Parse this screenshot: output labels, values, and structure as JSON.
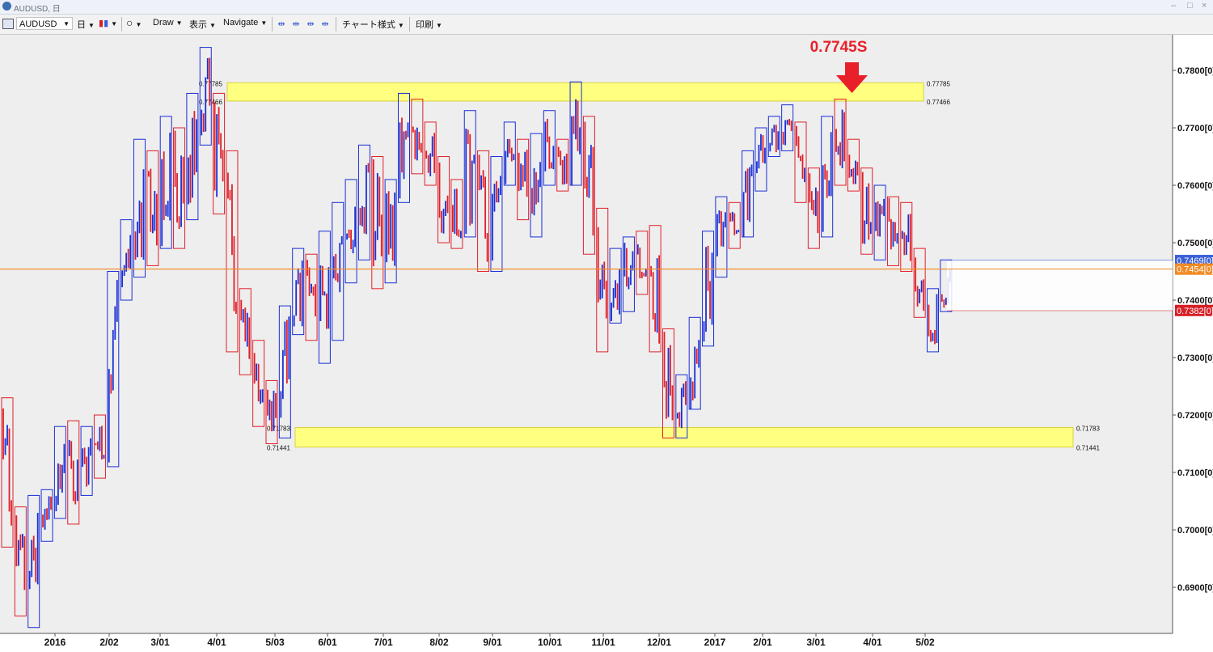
{
  "window": {
    "title": "AUDUSD, 日"
  },
  "toolbar": {
    "symbol": "AUDUSD",
    "timeframe": "日",
    "candle_icon": "candlestick-icon",
    "circle_icon": "circle-icon",
    "draw": "Draw",
    "view": "表示",
    "navigate": "Navigate",
    "chart_style": "チャート様式",
    "print": "印刷"
  },
  "chart": {
    "annotation_text": "0.7745S",
    "annotation_color": "#e8202a",
    "zone_color": "#ffff80",
    "bull_color": "#1a2fd6",
    "bear_color": "#e0202a",
    "resistance_zone": {
      "upper": 0.77785,
      "lower": 0.77466,
      "upper_label": "0.77785",
      "lower_label": "0.77466"
    },
    "support_zone": {
      "upper": 0.71783,
      "lower": 0.71441,
      "upper_label": "0.71783",
      "lower_label": "0.71441"
    },
    "price_axis": [
      "0.7800[0]",
      "0.7700[0]",
      "0.7600[0]",
      "0.7500[0]",
      "0.7400[0]",
      "0.7300[0]",
      "0.7200[0]",
      "0.7100[0]",
      "0.7000[0]",
      "0.6900[0]"
    ],
    "price_tags": [
      {
        "label": "0.7469[0]",
        "color": "#3a62d8"
      },
      {
        "label": "0.7454[0]",
        "color": "#f08a24"
      },
      {
        "label": "0.7382[0]",
        "color": "#d61f26"
      }
    ],
    "time_axis": [
      "2016",
      "2/02",
      "3/01",
      "4/01",
      "5/03",
      "6/01",
      "7/01",
      "8/02",
      "9/01",
      "10/01",
      "11/01",
      "12/01",
      "2017",
      "2/01",
      "3/01",
      "4/01",
      "5/02"
    ]
  },
  "chart_data": {
    "type": "candlestick",
    "title": "",
    "xlabel": "",
    "ylabel": "",
    "ylim": [
      0.6852,
      0.7862
    ],
    "legend": "none",
    "grid": false,
    "series": [
      {
        "week": "2016-01-04",
        "o": 0.72,
        "h": 0.723,
        "l": 0.697,
        "c": 0.702
      },
      {
        "week": "2016-01-11",
        "o": 0.702,
        "h": 0.704,
        "l": 0.685,
        "c": 0.69
      },
      {
        "week": "2016-01-18",
        "o": 0.69,
        "h": 0.706,
        "l": 0.683,
        "c": 0.702
      },
      {
        "week": "2016-01-25",
        "o": 0.702,
        "h": 0.707,
        "l": 0.698,
        "c": 0.704
      },
      {
        "week": "2016-02-01",
        "o": 0.704,
        "h": 0.718,
        "l": 0.702,
        "c": 0.714
      },
      {
        "week": "2016-02-08",
        "o": 0.714,
        "h": 0.719,
        "l": 0.701,
        "c": 0.711
      },
      {
        "week": "2016-02-15",
        "o": 0.711,
        "h": 0.718,
        "l": 0.706,
        "c": 0.715
      },
      {
        "week": "2016-02-22",
        "o": 0.715,
        "h": 0.72,
        "l": 0.709,
        "c": 0.713
      },
      {
        "week": "2016-02-29",
        "o": 0.713,
        "h": 0.745,
        "l": 0.711,
        "c": 0.743
      },
      {
        "week": "2016-03-07",
        "o": 0.743,
        "h": 0.754,
        "l": 0.74,
        "c": 0.751
      },
      {
        "week": "2016-03-14",
        "o": 0.751,
        "h": 0.768,
        "l": 0.744,
        "c": 0.762
      },
      {
        "week": "2016-03-21",
        "o": 0.762,
        "h": 0.766,
        "l": 0.746,
        "c": 0.75
      },
      {
        "week": "2016-03-28",
        "o": 0.75,
        "h": 0.772,
        "l": 0.749,
        "c": 0.768
      },
      {
        "week": "2016-04-04",
        "o": 0.768,
        "h": 0.77,
        "l": 0.749,
        "c": 0.758
      },
      {
        "week": "2016-04-11",
        "o": 0.758,
        "h": 0.776,
        "l": 0.754,
        "c": 0.77
      },
      {
        "week": "2016-04-18",
        "o": 0.77,
        "h": 0.784,
        "l": 0.767,
        "c": 0.774
      },
      {
        "week": "2016-04-25",
        "o": 0.774,
        "h": 0.776,
        "l": 0.755,
        "c": 0.762
      },
      {
        "week": "2016-05-02",
        "o": 0.762,
        "h": 0.766,
        "l": 0.731,
        "c": 0.739
      },
      {
        "week": "2016-05-09",
        "o": 0.739,
        "h": 0.742,
        "l": 0.727,
        "c": 0.73
      },
      {
        "week": "2016-05-16",
        "o": 0.73,
        "h": 0.733,
        "l": 0.718,
        "c": 0.724
      },
      {
        "week": "2016-05-23",
        "o": 0.724,
        "h": 0.726,
        "l": 0.715,
        "c": 0.72
      },
      {
        "week": "2016-05-30",
        "o": 0.72,
        "h": 0.739,
        "l": 0.716,
        "c": 0.736
      },
      {
        "week": "2016-06-06",
        "o": 0.736,
        "h": 0.749,
        "l": 0.734,
        "c": 0.746
      },
      {
        "week": "2016-06-13",
        "o": 0.746,
        "h": 0.748,
        "l": 0.733,
        "c": 0.738
      },
      {
        "week": "2016-06-20",
        "o": 0.738,
        "h": 0.752,
        "l": 0.729,
        "c": 0.744
      },
      {
        "week": "2016-06-27",
        "o": 0.744,
        "h": 0.757,
        "l": 0.733,
        "c": 0.751
      },
      {
        "week": "2016-07-04",
        "o": 0.751,
        "h": 0.761,
        "l": 0.743,
        "c": 0.756
      },
      {
        "week": "2016-07-11",
        "o": 0.756,
        "h": 0.767,
        "l": 0.747,
        "c": 0.763
      },
      {
        "week": "2016-07-18",
        "o": 0.763,
        "h": 0.765,
        "l": 0.742,
        "c": 0.748
      },
      {
        "week": "2016-07-25",
        "o": 0.748,
        "h": 0.761,
        "l": 0.743,
        "c": 0.758
      },
      {
        "week": "2016-08-01",
        "o": 0.758,
        "h": 0.776,
        "l": 0.757,
        "c": 0.77
      },
      {
        "week": "2016-08-08",
        "o": 0.77,
        "h": 0.775,
        "l": 0.762,
        "c": 0.766
      },
      {
        "week": "2016-08-15",
        "o": 0.766,
        "h": 0.771,
        "l": 0.76,
        "c": 0.763
      },
      {
        "week": "2016-08-22",
        "o": 0.763,
        "h": 0.765,
        "l": 0.75,
        "c": 0.756
      },
      {
        "week": "2016-08-29",
        "o": 0.756,
        "h": 0.761,
        "l": 0.749,
        "c": 0.752
      },
      {
        "week": "2016-09-05",
        "o": 0.752,
        "h": 0.773,
        "l": 0.751,
        "c": 0.765
      },
      {
        "week": "2016-09-12",
        "o": 0.765,
        "h": 0.766,
        "l": 0.745,
        "c": 0.748
      },
      {
        "week": "2016-09-19",
        "o": 0.748,
        "h": 0.765,
        "l": 0.745,
        "c": 0.761
      },
      {
        "week": "2016-09-26",
        "o": 0.761,
        "h": 0.771,
        "l": 0.76,
        "c": 0.765
      },
      {
        "week": "2016-10-03",
        "o": 0.765,
        "h": 0.768,
        "l": 0.754,
        "c": 0.759
      },
      {
        "week": "2016-10-10",
        "o": 0.759,
        "h": 0.769,
        "l": 0.751,
        "c": 0.763
      },
      {
        "week": "2016-10-17",
        "o": 0.763,
        "h": 0.773,
        "l": 0.76,
        "c": 0.766
      },
      {
        "week": "2016-10-24",
        "o": 0.766,
        "h": 0.768,
        "l": 0.759,
        "c": 0.761
      },
      {
        "week": "2016-10-31",
        "o": 0.761,
        "h": 0.778,
        "l": 0.76,
        "c": 0.77
      },
      {
        "week": "2016-11-07",
        "o": 0.77,
        "h": 0.772,
        "l": 0.748,
        "c": 0.752
      },
      {
        "week": "2016-11-14",
        "o": 0.752,
        "h": 0.756,
        "l": 0.731,
        "c": 0.737
      },
      {
        "week": "2016-11-21",
        "o": 0.737,
        "h": 0.749,
        "l": 0.736,
        "c": 0.745
      },
      {
        "week": "2016-11-28",
        "o": 0.745,
        "h": 0.751,
        "l": 0.738,
        "c": 0.748
      },
      {
        "week": "2016-12-05",
        "o": 0.748,
        "h": 0.752,
        "l": 0.741,
        "c": 0.745
      },
      {
        "week": "2016-12-12",
        "o": 0.745,
        "h": 0.753,
        "l": 0.731,
        "c": 0.734
      },
      {
        "week": "2016-12-19",
        "o": 0.734,
        "h": 0.735,
        "l": 0.716,
        "c": 0.72
      },
      {
        "week": "2016-12-26",
        "o": 0.72,
        "h": 0.727,
        "l": 0.716,
        "c": 0.722
      },
      {
        "week": "2017-01-02",
        "o": 0.722,
        "h": 0.737,
        "l": 0.721,
        "c": 0.733
      },
      {
        "week": "2017-01-09",
        "o": 0.733,
        "h": 0.752,
        "l": 0.732,
        "c": 0.748
      },
      {
        "week": "2017-01-16",
        "o": 0.748,
        "h": 0.758,
        "l": 0.744,
        "c": 0.755
      },
      {
        "week": "2017-01-23",
        "o": 0.755,
        "h": 0.757,
        "l": 0.749,
        "c": 0.752
      },
      {
        "week": "2017-01-30",
        "o": 0.752,
        "h": 0.766,
        "l": 0.751,
        "c": 0.763
      },
      {
        "week": "2017-02-06",
        "o": 0.763,
        "h": 0.77,
        "l": 0.759,
        "c": 0.766
      },
      {
        "week": "2017-02-13",
        "o": 0.766,
        "h": 0.772,
        "l": 0.765,
        "c": 0.769
      },
      {
        "week": "2017-02-20",
        "o": 0.769,
        "h": 0.774,
        "l": 0.766,
        "c": 0.77
      },
      {
        "week": "2017-02-27",
        "o": 0.77,
        "h": 0.771,
        "l": 0.757,
        "c": 0.762
      },
      {
        "week": "2017-03-06",
        "o": 0.762,
        "h": 0.763,
        "l": 0.749,
        "c": 0.752
      },
      {
        "week": "2017-03-13",
        "o": 0.752,
        "h": 0.772,
        "l": 0.751,
        "c": 0.769
      },
      {
        "week": "2017-03-20",
        "o": 0.769,
        "h": 0.775,
        "l": 0.76,
        "c": 0.765
      },
      {
        "week": "2017-03-27",
        "o": 0.765,
        "h": 0.768,
        "l": 0.759,
        "c": 0.762
      },
      {
        "week": "2017-04-03",
        "o": 0.762,
        "h": 0.763,
        "l": 0.748,
        "c": 0.753
      },
      {
        "week": "2017-04-10",
        "o": 0.753,
        "h": 0.76,
        "l": 0.747,
        "c": 0.757
      },
      {
        "week": "2017-04-17",
        "o": 0.757,
        "h": 0.758,
        "l": 0.746,
        "c": 0.751
      },
      {
        "week": "2017-04-24",
        "o": 0.751,
        "h": 0.757,
        "l": 0.745,
        "c": 0.747
      },
      {
        "week": "2017-05-01",
        "o": 0.747,
        "h": 0.749,
        "l": 0.737,
        "c": 0.739
      },
      {
        "week": "2017-05-08",
        "o": 0.739,
        "h": 0.742,
        "l": 0.731,
        "c": 0.741
      },
      {
        "week": "2017-05-15",
        "o": 0.741,
        "h": 0.747,
        "l": 0.738,
        "c": 0.7454
      }
    ]
  }
}
